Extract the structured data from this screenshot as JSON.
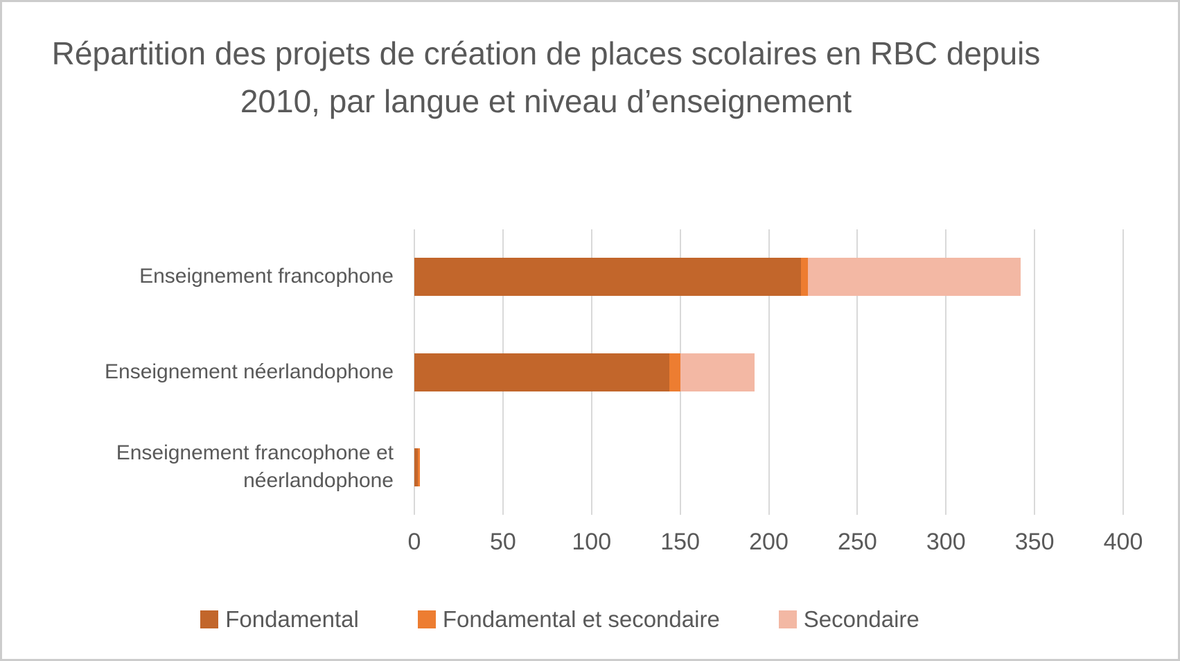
{
  "frame": {
    "background_color": "#ffffff",
    "border_color": "#cccccc"
  },
  "chart_data": {
    "type": "bar",
    "orientation": "horizontal",
    "stacked": true,
    "title": "Répartition des projets de création de places scolaires en RBC depuis 2010, par langue et niveau d’enseignement",
    "categories": [
      "Enseignement francophone",
      "Enseignement néerlandophone",
      "Enseignement francophone et néerlandophone"
    ],
    "series": [
      {
        "name": "Fondamental",
        "color": "#C2662B",
        "values": [
          218,
          144,
          2
        ]
      },
      {
        "name": "Fondamental et secondaire",
        "color": "#ED7D31",
        "values": [
          4,
          6,
          1
        ]
      },
      {
        "name": "Secondaire",
        "color": "#F3B8A4",
        "values": [
          120,
          42,
          0
        ]
      }
    ],
    "category_totals": [
      342,
      192,
      3
    ],
    "x_axis": {
      "min": 0,
      "max": 400,
      "tick_step": 50,
      "tick_labels": [
        "0",
        "50",
        "100",
        "150",
        "200",
        "250",
        "300",
        "350",
        "400"
      ]
    },
    "grid": "vertical-gridlines-on",
    "gridline_color": "#D9D9D9",
    "text_color": "#595959",
    "legend_position": "bottom"
  }
}
